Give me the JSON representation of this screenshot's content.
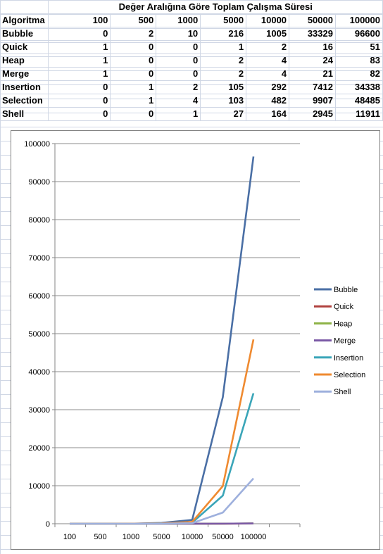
{
  "table": {
    "title": "Değer Aralığına Göre Toplam Çalışma Süresi",
    "header_label": "Algoritma",
    "columns": [
      "100",
      "500",
      "1000",
      "5000",
      "10000",
      "50000",
      "100000"
    ],
    "rows": [
      {
        "name": "Bubble",
        "values": [
          0,
          2,
          10,
          216,
          1005,
          33329,
          96600
        ]
      },
      {
        "name": "Quick",
        "values": [
          1,
          0,
          0,
          1,
          2,
          16,
          51
        ]
      },
      {
        "name": "Heap",
        "values": [
          1,
          0,
          0,
          2,
          4,
          24,
          83
        ]
      },
      {
        "name": "Merge",
        "values": [
          1,
          0,
          0,
          2,
          4,
          21,
          82
        ]
      },
      {
        "name": "Insertion",
        "values": [
          0,
          1,
          2,
          105,
          292,
          7412,
          34338
        ]
      },
      {
        "name": "Selection",
        "values": [
          0,
          1,
          4,
          103,
          482,
          9907,
          48485
        ]
      },
      {
        "name": "Shell",
        "values": [
          0,
          0,
          1,
          27,
          164,
          2945,
          11911
        ]
      }
    ]
  },
  "chart_data": {
    "type": "line",
    "categories": [
      "100",
      "500",
      "1000",
      "5000",
      "10000",
      "50000",
      "100000"
    ],
    "series": [
      {
        "name": "Bubble",
        "color": "#4a6fa5",
        "values": [
          0,
          2,
          10,
          216,
          1005,
          33329,
          96600
        ]
      },
      {
        "name": "Quick",
        "color": "#b0413e",
        "values": [
          1,
          0,
          0,
          1,
          2,
          16,
          51
        ]
      },
      {
        "name": "Heap",
        "color": "#8db245",
        "values": [
          1,
          0,
          0,
          2,
          4,
          24,
          83
        ]
      },
      {
        "name": "Merge",
        "color": "#7b5aa6",
        "values": [
          1,
          0,
          0,
          2,
          4,
          21,
          82
        ]
      },
      {
        "name": "Insertion",
        "color": "#3aa5b8",
        "values": [
          0,
          1,
          2,
          105,
          292,
          7412,
          34338
        ]
      },
      {
        "name": "Selection",
        "color": "#ef8a30",
        "values": [
          0,
          1,
          4,
          103,
          482,
          9907,
          48485
        ]
      },
      {
        "name": "Shell",
        "color": "#9eb0dd",
        "values": [
          0,
          0,
          1,
          27,
          164,
          2945,
          11911
        ]
      }
    ],
    "ylim": [
      0,
      100000
    ],
    "yticks": [
      0,
      10000,
      20000,
      30000,
      40000,
      50000,
      60000,
      70000,
      80000,
      90000,
      100000
    ],
    "grid": true,
    "legend": "right"
  }
}
